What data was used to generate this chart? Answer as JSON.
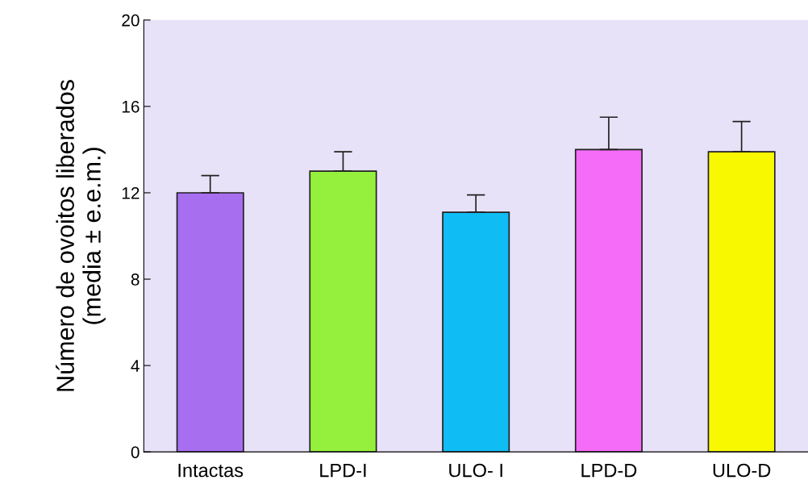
{
  "chart_data": {
    "type": "bar",
    "ylabel": "Número de ovoitos liberados\n(media ± e.e.m.)",
    "categories": [
      "Intactas",
      "LPD-I",
      "ULO- I",
      "LPD-D",
      "ULO-D"
    ],
    "values": [
      12,
      13,
      11.1,
      14,
      13.9
    ],
    "errors": [
      [
        12,
        12.8
      ],
      [
        13,
        13.9
      ],
      [
        11.1,
        11.9
      ],
      [
        14,
        15.5
      ],
      [
        13.9,
        15.3
      ]
    ],
    "colors": [
      "#a86ef0",
      "#94f03c",
      "#10bcf4",
      "#f46cf8",
      "#f8f800"
    ],
    "ylim": [
      0,
      20
    ],
    "yticks": [
      0,
      4,
      8,
      12,
      16,
      20
    ],
    "grid": false,
    "legend": false
  }
}
